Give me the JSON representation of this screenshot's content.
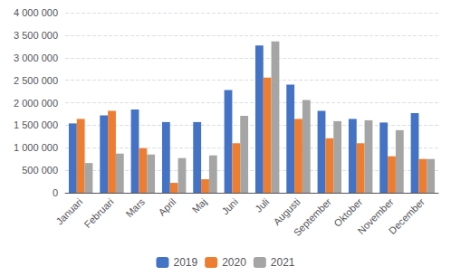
{
  "chart_data": {
    "type": "bar",
    "categories": [
      "Januari",
      "Februari",
      "Mars",
      "April",
      "Maj",
      "Juni",
      "Juli",
      "Augusti",
      "September",
      "Oktober",
      "November",
      "December"
    ],
    "series": [
      {
        "name": "2019",
        "color": "#4472C4",
        "values": [
          1540000,
          1720000,
          1850000,
          1570000,
          1570000,
          2280000,
          3270000,
          2400000,
          1820000,
          1640000,
          1560000,
          1770000
        ]
      },
      {
        "name": "2020",
        "color": "#ED7D31",
        "values": [
          1640000,
          1820000,
          990000,
          220000,
          300000,
          1100000,
          2560000,
          1640000,
          1210000,
          1100000,
          810000,
          750000
        ]
      },
      {
        "name": "2021",
        "color": "#A5A5A5",
        "values": [
          660000,
          870000,
          850000,
          770000,
          830000,
          1710000,
          3360000,
          2060000,
          1590000,
          1610000,
          1390000,
          750000
        ]
      }
    ],
    "ylim": [
      0,
      4000000
    ],
    "yticks": [
      0,
      {
        "value": 500000,
        "label": "500 000"
      },
      {
        "value": 1000000,
        "label": "1 000 000"
      },
      {
        "value": 1500000,
        "label": "1 500 000"
      },
      {
        "value": 2000000,
        "label": "2 000 000"
      },
      {
        "value": 2500000,
        "label": "2 500 000"
      },
      {
        "value": 3000000,
        "label": "3 000 000"
      },
      {
        "value": 3500000,
        "label": "3 500 000"
      },
      {
        "value": 4000000,
        "label": "4 000 000"
      }
    ],
    "grid": true,
    "legend": "bottom"
  }
}
